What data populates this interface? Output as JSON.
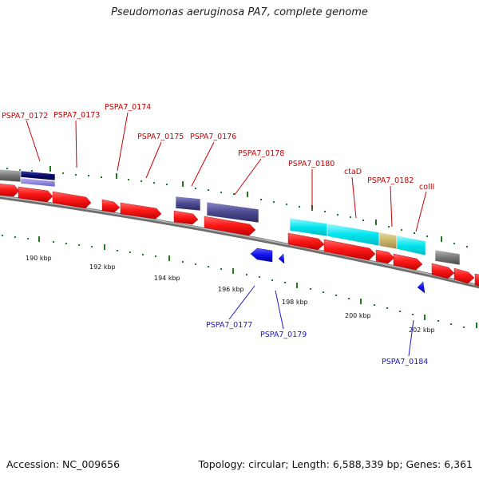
{
  "title": "Pseudomonas aeruginosa PA7, complete genome",
  "footer": {
    "accession": "Accession: NC_009656",
    "summary": "Topology: circular; Length: 6,588,339 bp; Genes: 6,361"
  },
  "colors": {
    "backbone": "#8a8a8a",
    "tick": "#1f7a1f",
    "gene_red": "#ff1a1a",
    "gene_blue": "#1111ee",
    "label_red": "#cc0000",
    "label_blue": "#1a1acc",
    "cyan": "#00e5ee",
    "slate": "#4b4a8e",
    "navy": "#0a0a6e",
    "gray": "#777777",
    "khaki": "#c9b46a",
    "lavender": "#8c83d8"
  },
  "scale_labels": [
    "190 kbp",
    "192 kbp",
    "194 kbp",
    "196 kbp",
    "198 kbp",
    "200 kbp",
    "202 kbp"
  ],
  "gene_labels_top": [
    "PSPA7_0172",
    "PSPA7_0173",
    "PSPA7_0174",
    "PSPA7_0175",
    "PSPA7_0176",
    "PSPA7_0178",
    "PSPA7_0180",
    "ctaD",
    "PSPA7_0182",
    "coIII"
  ],
  "gene_labels_bottom": [
    "PSPA7_0177",
    "PSPA7_0179",
    "PSPA7_0184"
  ]
}
